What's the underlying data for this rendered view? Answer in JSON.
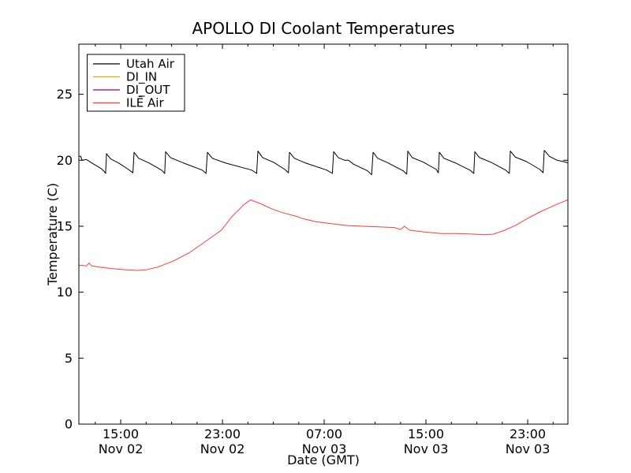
{
  "chart_data": {
    "type": "line",
    "title": "APOLLO DI Coolant Temperatures",
    "xlabel": "Date (GMT)",
    "ylabel": "Temperature (C)",
    "xlim": [
      0,
      38.45
    ],
    "ylim": [
      0,
      28.8
    ],
    "grid": false,
    "legend_position": "upper left",
    "yticks": [
      0,
      5,
      10,
      15,
      20,
      25
    ],
    "xticks": [
      {
        "t": 3.29,
        "time": "15:00",
        "date": "Nov 02"
      },
      {
        "t": 11.29,
        "time": "23:00",
        "date": "Nov 02"
      },
      {
        "t": 19.29,
        "time": "07:00",
        "date": "Nov 03"
      },
      {
        "t": 27.29,
        "time": "15:00",
        "date": "Nov 03"
      },
      {
        "t": 35.29,
        "time": "23:00",
        "date": "Nov 03"
      }
    ],
    "x_minor_tick_step_hours": 2,
    "axis_color": "#000000",
    "series": [
      {
        "name": "utah_air",
        "label": "Utah Air",
        "color": "#000000",
        "opacity": 1,
        "points": [
          [
            0,
            20.3
          ],
          [
            0.15,
            20.3
          ],
          [
            0.25,
            20.0
          ],
          [
            0.6,
            20.05
          ],
          [
            1.0,
            19.8
          ],
          [
            1.7,
            19.4
          ],
          [
            2.0,
            19.15
          ],
          [
            2.1,
            19.0
          ],
          [
            2.17,
            20.5
          ],
          [
            2.5,
            20.1
          ],
          [
            3.1,
            19.8
          ],
          [
            3.9,
            19.3
          ],
          [
            4.25,
            19.05
          ],
          [
            4.34,
            20.6
          ],
          [
            4.7,
            20.15
          ],
          [
            5.5,
            19.8
          ],
          [
            6.5,
            19.25
          ],
          [
            6.75,
            19.0
          ],
          [
            6.82,
            20.65
          ],
          [
            7.2,
            20.2
          ],
          [
            8.2,
            19.8
          ],
          [
            9.7,
            19.25
          ],
          [
            10.0,
            19.0
          ],
          [
            10.11,
            20.6
          ],
          [
            10.5,
            20.15
          ],
          [
            11.5,
            19.8
          ],
          [
            13.6,
            19.25
          ],
          [
            13.98,
            19.0
          ],
          [
            14.08,
            20.7
          ],
          [
            14.45,
            20.2
          ],
          [
            15.3,
            19.85
          ],
          [
            16.2,
            19.3
          ],
          [
            16.48,
            19.05
          ],
          [
            16.56,
            20.6
          ],
          [
            16.95,
            20.15
          ],
          [
            17.8,
            19.8
          ],
          [
            19.5,
            19.25
          ],
          [
            19.93,
            19.0
          ],
          [
            20.03,
            20.65
          ],
          [
            20.4,
            20.2
          ],
          [
            20.9,
            20.0
          ],
          [
            21.2,
            20.0
          ],
          [
            21.6,
            19.7
          ],
          [
            22.7,
            19.2
          ],
          [
            23.02,
            18.9
          ],
          [
            23.13,
            20.6
          ],
          [
            23.5,
            20.15
          ],
          [
            24.3,
            19.8
          ],
          [
            25.5,
            19.2
          ],
          [
            25.78,
            18.95
          ],
          [
            25.86,
            20.7
          ],
          [
            26.2,
            20.2
          ],
          [
            27.1,
            19.85
          ],
          [
            28.1,
            19.3
          ],
          [
            28.27,
            19.05
          ],
          [
            28.34,
            20.6
          ],
          [
            28.7,
            20.15
          ],
          [
            29.6,
            19.8
          ],
          [
            30.75,
            19.25
          ],
          [
            31.05,
            19.0
          ],
          [
            31.13,
            20.65
          ],
          [
            31.5,
            20.2
          ],
          [
            32.4,
            19.85
          ],
          [
            33.55,
            19.25
          ],
          [
            33.85,
            19.0
          ],
          [
            33.92,
            20.7
          ],
          [
            34.3,
            20.25
          ],
          [
            35.2,
            19.9
          ],
          [
            36.25,
            19.3
          ],
          [
            36.5,
            19.05
          ],
          [
            36.59,
            20.75
          ],
          [
            37.0,
            20.3
          ],
          [
            37.6,
            20.0
          ],
          [
            38.1,
            19.9
          ],
          [
            38.45,
            19.8
          ]
        ]
      },
      {
        "name": "di_in",
        "label": "DI_IN",
        "color": "#ffa500",
        "opacity": 0.5,
        "points": [
          [
            0,
            0
          ],
          [
            38.45,
            0
          ]
        ]
      },
      {
        "name": "di_out",
        "label": "DI_OUT",
        "color": "#800080",
        "opacity": 0.5,
        "points": [
          [
            0,
            0
          ],
          [
            38.45,
            0
          ]
        ]
      },
      {
        "name": "ile_air",
        "label": "ILĒ Air",
        "color": "#ff3b3b",
        "opacity": 1,
        "points": [
          [
            0,
            12.05
          ],
          [
            0.6,
            12.0
          ],
          [
            0.8,
            12.2
          ],
          [
            1.0,
            12.0
          ],
          [
            1.6,
            11.9
          ],
          [
            2.5,
            11.8
          ],
          [
            3.7,
            11.7
          ],
          [
            4.6,
            11.65
          ],
          [
            5.3,
            11.7
          ],
          [
            6.2,
            11.9
          ],
          [
            7.4,
            12.35
          ],
          [
            8.7,
            13.0
          ],
          [
            9.9,
            13.8
          ],
          [
            11.2,
            14.7
          ],
          [
            12.1,
            15.8
          ],
          [
            13.0,
            16.65
          ],
          [
            13.5,
            17.0
          ],
          [
            14.3,
            16.7
          ],
          [
            15.2,
            16.3
          ],
          [
            16.1,
            16.0
          ],
          [
            17.1,
            15.75
          ],
          [
            17.7,
            15.55
          ],
          [
            18.6,
            15.35
          ],
          [
            19.8,
            15.2
          ],
          [
            21.1,
            15.05
          ],
          [
            22.3,
            15.0
          ],
          [
            23.6,
            14.95
          ],
          [
            24.8,
            14.9
          ],
          [
            25.3,
            14.75
          ],
          [
            25.6,
            15.0
          ],
          [
            26.0,
            14.7
          ],
          [
            27.3,
            14.55
          ],
          [
            28.5,
            14.45
          ],
          [
            29.8,
            14.45
          ],
          [
            31.0,
            14.4
          ],
          [
            31.9,
            14.35
          ],
          [
            32.6,
            14.4
          ],
          [
            33.5,
            14.7
          ],
          [
            34.4,
            15.1
          ],
          [
            35.3,
            15.6
          ],
          [
            36.3,
            16.1
          ],
          [
            37.2,
            16.5
          ],
          [
            37.8,
            16.75
          ],
          [
            38.45,
            17.0
          ]
        ]
      }
    ]
  }
}
